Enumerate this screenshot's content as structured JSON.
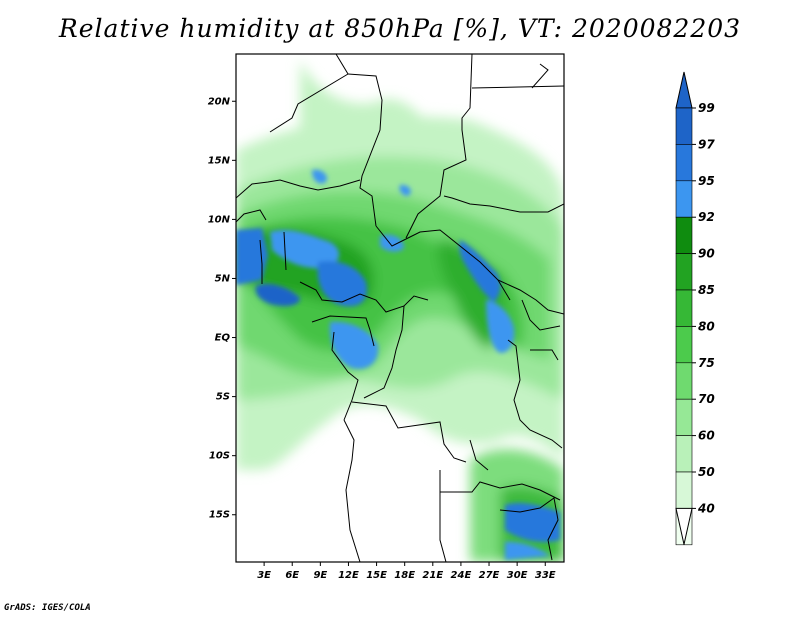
{
  "title": "Relative humidity at 850hPa [%], VT: 2020082203",
  "credit": "GrADS: IGES/COLA",
  "map": {
    "region": "Central Africa",
    "lon_range": [
      0,
      35
    ],
    "lat_range": [
      -19,
      24
    ],
    "lat_labels": [
      {
        "lat": 20,
        "text": "20N"
      },
      {
        "lat": 15,
        "text": "15N"
      },
      {
        "lat": 10,
        "text": "10N"
      },
      {
        "lat": 5,
        "text": "5N"
      },
      {
        "lat": 0,
        "text": "EQ"
      },
      {
        "lat": -5,
        "text": "5S"
      },
      {
        "lat": -10,
        "text": "10S"
      },
      {
        "lat": -15,
        "text": "15S"
      }
    ],
    "lon_labels": [
      {
        "lon": 3,
        "text": "3E"
      },
      {
        "lon": 6,
        "text": "6E"
      },
      {
        "lon": 9,
        "text": "9E"
      },
      {
        "lon": 12,
        "text": "12E"
      },
      {
        "lon": 15,
        "text": "15E"
      },
      {
        "lon": 18,
        "text": "18E"
      },
      {
        "lon": 21,
        "text": "21E"
      },
      {
        "lon": 24,
        "text": "24E"
      },
      {
        "lon": 27,
        "text": "27E"
      },
      {
        "lon": 30,
        "text": "30E"
      },
      {
        "lon": 33,
        "text": "33E"
      }
    ]
  },
  "colorbar": {
    "levels": [
      "99",
      "97",
      "95",
      "92",
      "90",
      "85",
      "80",
      "75",
      "70",
      "60",
      "50",
      "40"
    ],
    "colors": [
      "#1e64c8",
      "#2878dc",
      "#3c96f0",
      "#0f8c0f",
      "#22a322",
      "#36b836",
      "#4ccb4c",
      "#6fda6f",
      "#96e896",
      "#b9f1b9",
      "#d7f8d7",
      "#f0fff0"
    ],
    "top_color": "#1e64c8",
    "bottom_color": "#ffffff"
  }
}
